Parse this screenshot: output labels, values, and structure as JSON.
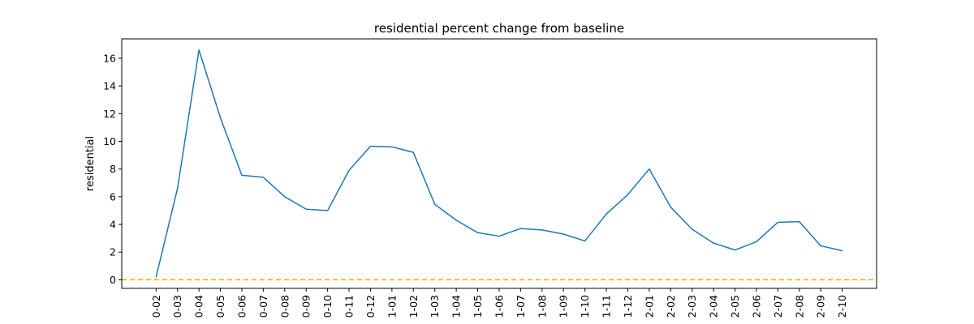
{
  "chart_data": {
    "type": "line",
    "title": "residential percent change from baseline",
    "xlabel": "",
    "ylabel": "residential",
    "x": [
      "0-02",
      "0-03",
      "0-04",
      "0-05",
      "0-06",
      "0-07",
      "0-08",
      "0-09",
      "0-10",
      "0-11",
      "0-12",
      "1-01",
      "1-02",
      "1-03",
      "1-04",
      "1-05",
      "1-06",
      "1-07",
      "1-08",
      "1-09",
      "1-10",
      "1-11",
      "1-12",
      "2-01",
      "2-02",
      "2-03",
      "2-04",
      "2-05",
      "2-06",
      "2-07",
      "2-08",
      "2-09",
      "2-10"
    ],
    "series": [
      {
        "values": [
          0.2,
          6.6,
          16.6,
          11.7,
          7.55,
          7.4,
          6.0,
          5.1,
          5.0,
          7.9,
          9.65,
          9.6,
          9.2,
          5.45,
          4.3,
          3.4,
          3.15,
          3.7,
          3.6,
          3.3,
          2.8,
          4.75,
          6.15,
          8.0,
          5.25,
          3.65,
          2.65,
          2.15,
          2.75,
          4.15,
          4.2,
          2.45,
          2.1
        ],
        "color": "#1f77b4"
      }
    ],
    "reference_line": {
      "y": 0,
      "color": "#ffa500",
      "style": "dashed"
    },
    "ylim": [
      -0.62,
      17.4
    ],
    "yticks": [
      0,
      2,
      4,
      6,
      8,
      10,
      12,
      14,
      16
    ],
    "grid": false,
    "legend": "none"
  }
}
